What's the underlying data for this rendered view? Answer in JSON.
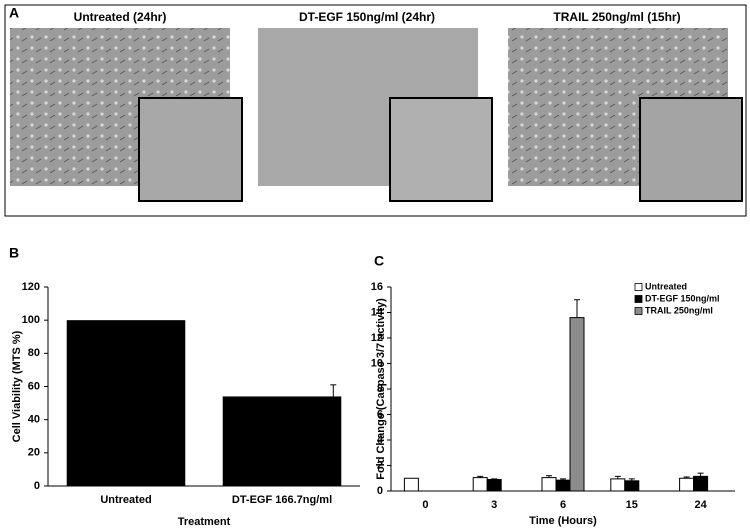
{
  "panel_a": {
    "label": "A",
    "images": [
      {
        "title": "Untreated (24hr)"
      },
      {
        "title": "DT-EGF 150ng/ml (24hr)"
      },
      {
        "title": "TRAIL 250ng/ml (15hr)"
      }
    ]
  },
  "chart_data": [
    {
      "panel_label": "B",
      "type": "bar",
      "y_label": "Cell Viability (MTS %)",
      "x_label": "Treatment",
      "categories": [
        "Untreated",
        "DT-EGF 166.7ng/ml"
      ],
      "values": [
        100,
        54
      ],
      "errors": [
        null,
        7
      ],
      "color": "#000000",
      "ylim": [
        0,
        120
      ],
      "yticks": [
        0,
        20,
        40,
        60,
        80,
        100,
        120
      ]
    },
    {
      "panel_label": "C",
      "type": "bar",
      "y_label": "Fold Change (Caspase 3/7 activity)",
      "x_label": "Time (Hours)",
      "categories": [
        "0",
        "3",
        "6",
        "15",
        "24"
      ],
      "legend": "upper right",
      "series": [
        {
          "name": "Untreated",
          "color": "#ffffff",
          "values": [
            1.0,
            1.05,
            1.05,
            0.95,
            1.0
          ],
          "errors": [
            null,
            0.1,
            0.15,
            0.2,
            0.1
          ]
        },
        {
          "name": "DT-EGF 150ng/ml",
          "color": "#000000",
          "values": [
            null,
            0.9,
            0.85,
            0.8,
            1.15
          ],
          "errors": [
            null,
            0.05,
            0.1,
            0.15,
            0.25
          ]
        },
        {
          "name": "TRAIL 250ng/ml",
          "color": "#8c8c8c",
          "values": [
            null,
            null,
            13.6,
            null,
            null
          ],
          "errors": [
            null,
            null,
            1.4,
            null,
            null
          ]
        }
      ],
      "ylim": [
        0,
        16
      ],
      "yticks": [
        0,
        2,
        4,
        6,
        8,
        10,
        12,
        14,
        16
      ]
    }
  ]
}
